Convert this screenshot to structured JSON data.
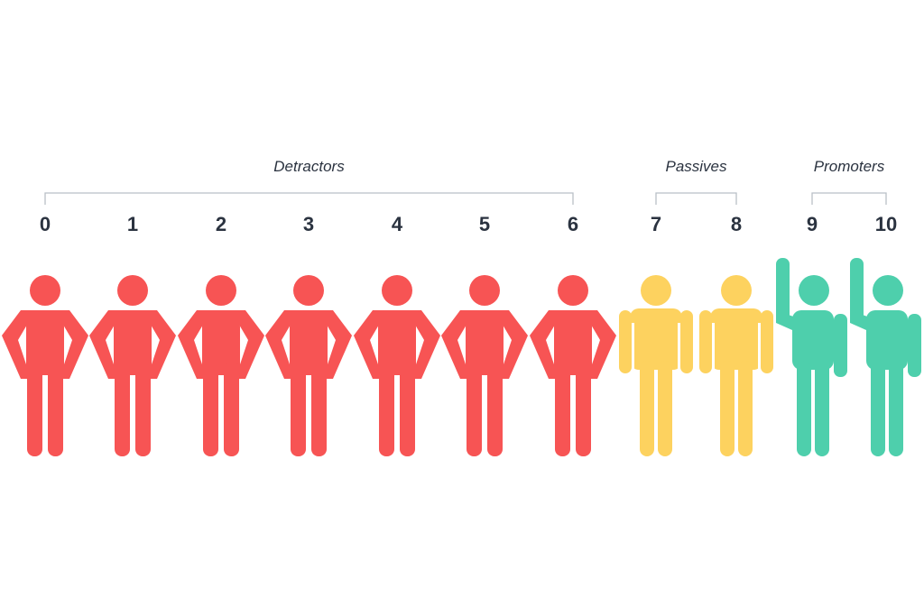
{
  "groups": [
    {
      "id": "detractors",
      "label": "Detractors",
      "from": 0,
      "to": 6
    },
    {
      "id": "passives",
      "label": "Passives",
      "from": 7,
      "to": 8
    },
    {
      "id": "promoters",
      "label": "Promoters",
      "from": 9,
      "to": 10
    }
  ],
  "scores": [
    {
      "label": "0",
      "group": "detractors",
      "pose": "hands-on-hips"
    },
    {
      "label": "1",
      "group": "detractors",
      "pose": "hands-on-hips"
    },
    {
      "label": "2",
      "group": "detractors",
      "pose": "hands-on-hips"
    },
    {
      "label": "3",
      "group": "detractors",
      "pose": "hands-on-hips"
    },
    {
      "label": "4",
      "group": "detractors",
      "pose": "hands-on-hips"
    },
    {
      "label": "5",
      "group": "detractors",
      "pose": "hands-on-hips"
    },
    {
      "label": "6",
      "group": "detractors",
      "pose": "hands-on-hips"
    },
    {
      "label": "7",
      "group": "passives",
      "pose": "standing"
    },
    {
      "label": "8",
      "group": "passives",
      "pose": "standing"
    },
    {
      "label": "9",
      "group": "promoters",
      "pose": "hand-raised"
    },
    {
      "label": "10",
      "group": "promoters",
      "pose": "hand-raised"
    }
  ],
  "colors": {
    "detractors": "#f75454",
    "passives": "#fdd25f",
    "promoters": "#4ecfac",
    "text": "#2b3340",
    "bracket": "#b9bfc7"
  },
  "icons": {
    "hands-on-hips": "person-hands-on-hips-icon",
    "standing": "person-standing-icon",
    "hand-raised": "person-hand-raised-icon"
  }
}
